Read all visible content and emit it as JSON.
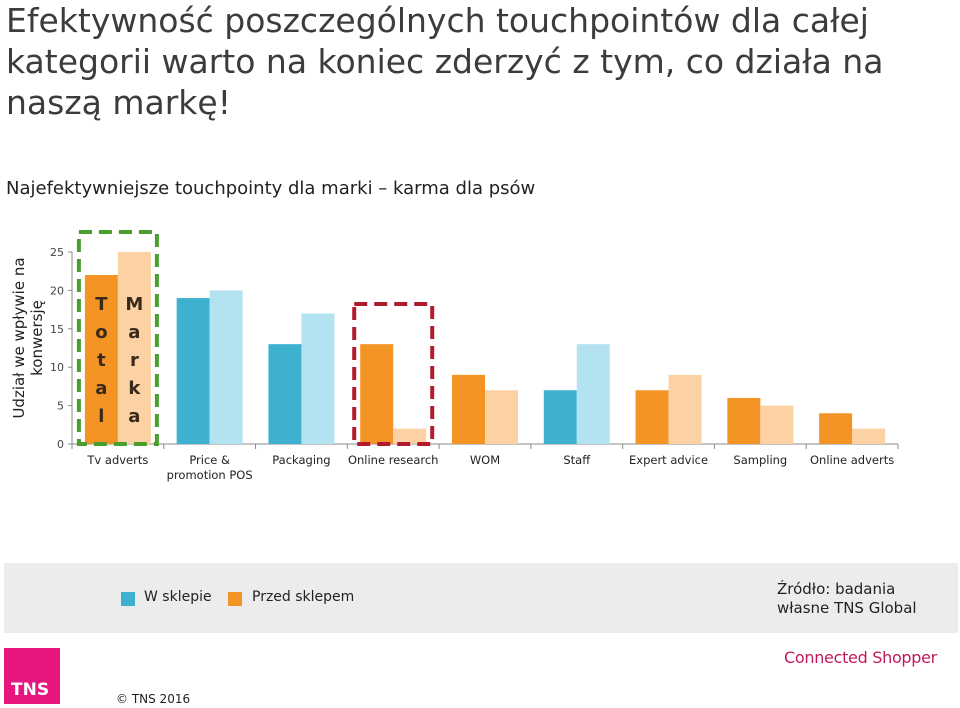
{
  "headline": "Efektywność poszczególnych touchpointów dla całej kategorii warto na koniec zderzyć z tym, co działa na naszą markę!",
  "subtitle": "Najefektywniejsze touchpointy dla marki – karma dla psów",
  "chart_data": {
    "type": "bar",
    "title": "",
    "ylabel": "Udział we wpływie na konwersję",
    "xlabel": "",
    "ylim": [
      0,
      25
    ],
    "yticks": [
      "0",
      "5",
      "10",
      "15",
      "20",
      "25"
    ],
    "grid": false,
    "categories": [
      "Tv adverts",
      "Price & promotion POS",
      "Packaging",
      "Online research",
      "WOM",
      "Staff",
      "Expert advice",
      "Sampling",
      "Online adverts"
    ],
    "total_values": [
      22.0,
      19.0,
      13.0,
      13.0,
      9.0,
      7.0,
      7.0,
      6.0,
      4.0
    ],
    "marka_values": [
      25.0,
      20.0,
      17.0,
      2.0,
      7.0,
      13.0,
      9.0,
      5.0,
      2.0
    ],
    "total_colors": [
      "#f39425",
      "#3db1cf",
      "#3db1cf",
      "#f39425",
      "#f39425",
      "#3db1cf",
      "#f39425",
      "#f39425",
      "#f39425"
    ],
    "marka_colors": [
      "#fcd1a3",
      "#b3e2f0",
      "#b3e2f0",
      "#fcd1a3",
      "#fcd1a3",
      "#b3e2f0",
      "#fcd1a3",
      "#fcd1a3",
      "#fcd1a3"
    ],
    "bar_labels": {
      "total": "Total",
      "marka": "Marka"
    },
    "legend": [
      {
        "name": "W sklepie",
        "color": "#3db1cf"
      },
      {
        "name": "Przed sklepem",
        "color": "#f39425"
      }
    ],
    "highlights": [
      {
        "category": "Tv adverts",
        "color": "#4a9e2e"
      },
      {
        "category": "Online research",
        "color": "#b01c2e"
      }
    ]
  },
  "footer": {
    "source": "Źródło: badania własne TNS Global",
    "logo": "TNS",
    "copyright": "© TNS 2016",
    "brand": "Connected Shopper"
  }
}
